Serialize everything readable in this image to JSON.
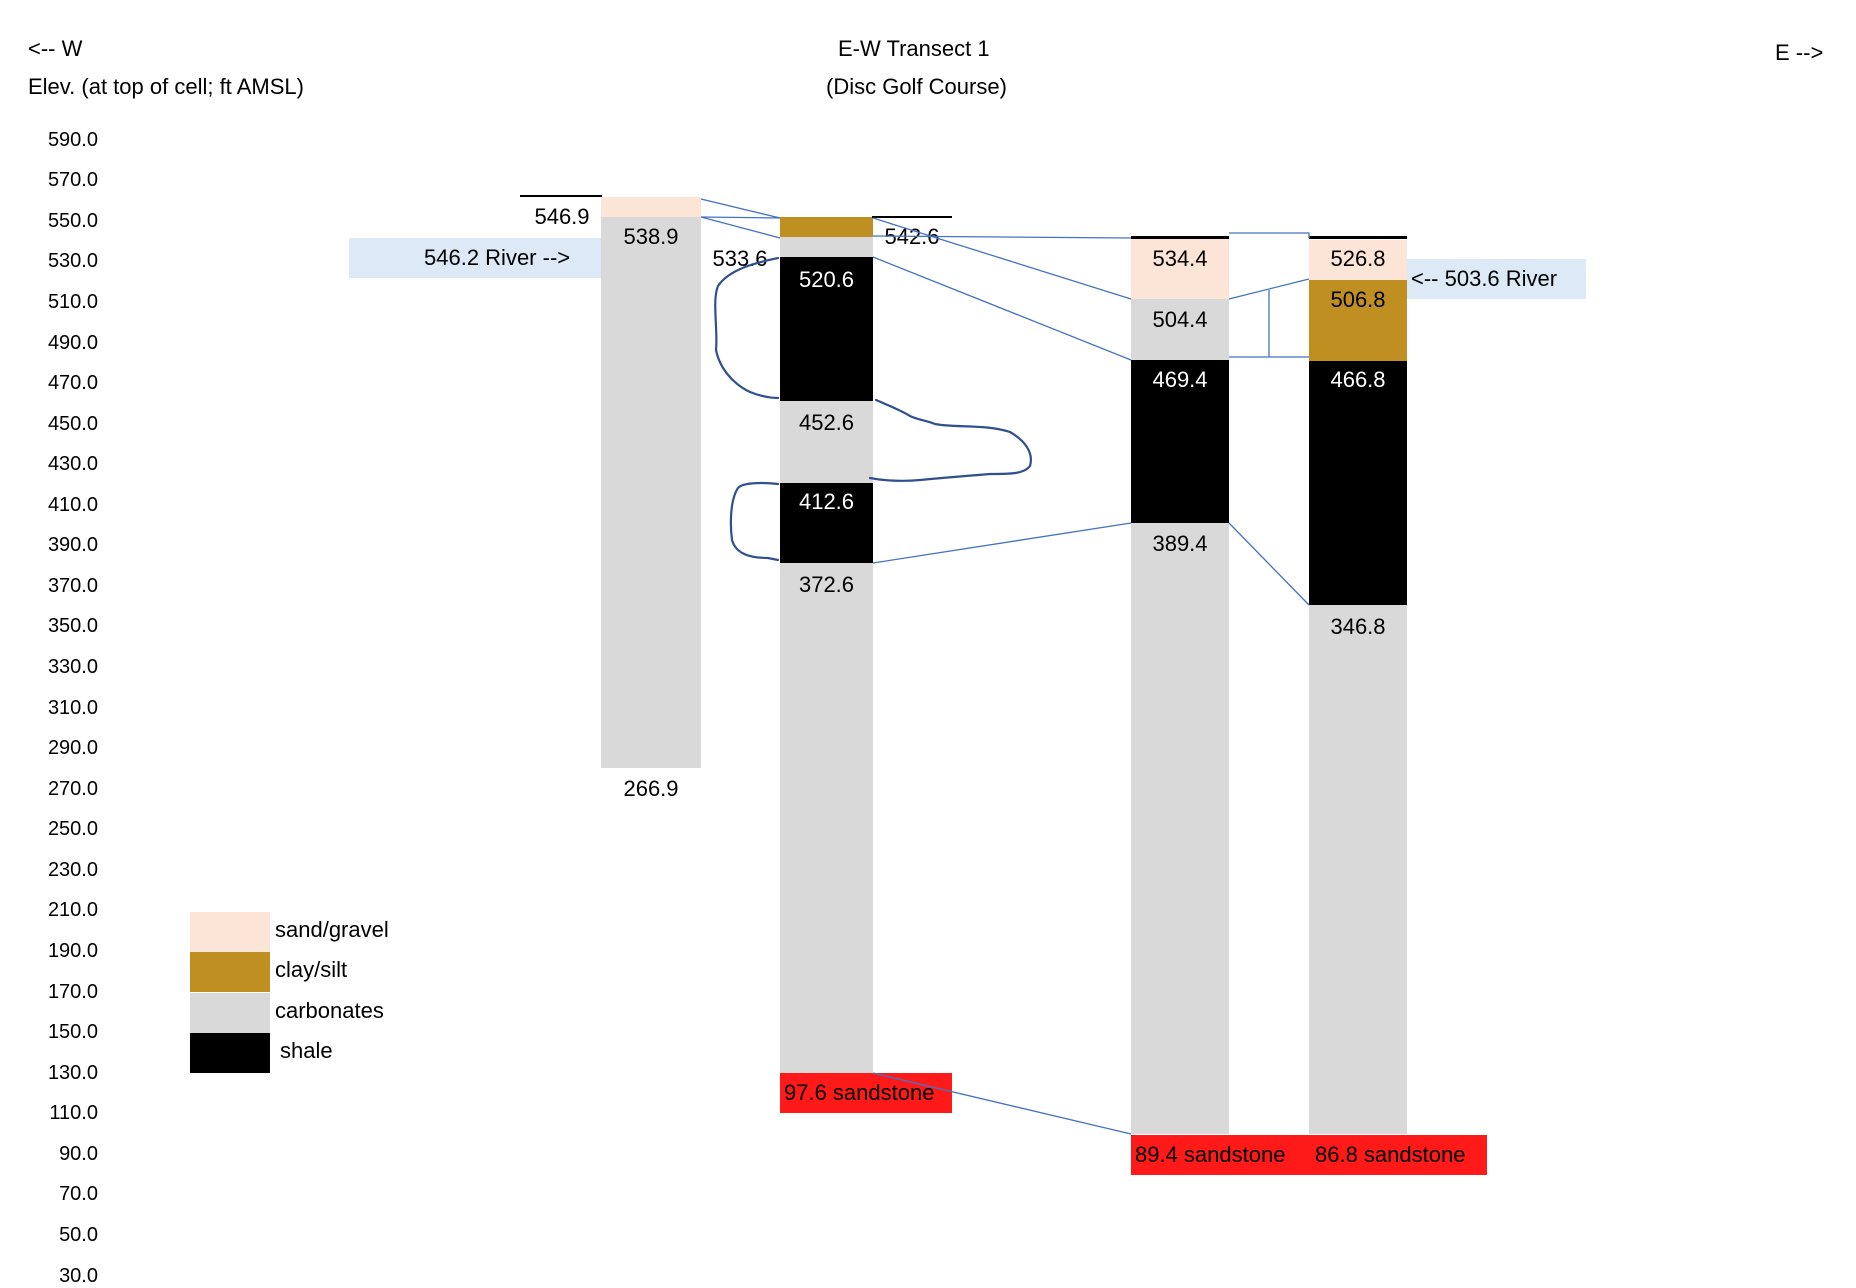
{
  "header": {
    "west_arrow": "<-- W",
    "east_arrow": "E -->",
    "axis_label": "Elev. (at top of cell; ft AMSL)",
    "title": "E-W Transect 1",
    "subtitle": "(Disc Golf Course)"
  },
  "y_ticks": [
    "590.0",
    "570.0",
    "550.0",
    "530.0",
    "510.0",
    "490.0",
    "470.0",
    "450.0",
    "430.0",
    "410.0",
    "390.0",
    "370.0",
    "350.0",
    "330.0",
    "310.0",
    "290.0",
    "270.0",
    "250.0",
    "230.0",
    "210.0",
    "190.0",
    "170.0",
    "150.0",
    "130.0",
    "110.0",
    "90.0",
    "70.0",
    "50.0",
    "30.0"
  ],
  "colors": {
    "sand_gravel": "#fce4d6",
    "clay_silt": "#bf8f21",
    "carbonates": "#d9d9d9",
    "shale": "#000000",
    "sandstone": "#ff1a1a",
    "river": "#dde9f6",
    "tie_line": "#4472c4",
    "hand_curve": "#2f4f8f"
  },
  "legend": [
    {
      "label": "sand/gravel",
      "color": "#fce4d6"
    },
    {
      "label": "clay/silt",
      "color": "#bf8f21"
    },
    {
      "label": "carbonates",
      "color": "#d9d9d9"
    },
    {
      "label": "shale",
      "color": "#000000"
    }
  ],
  "wells": [
    {
      "surface": "546.9",
      "layers": [
        {
          "type": "sand_gravel",
          "top": 546.9,
          "bottom": 538.9
        },
        {
          "type": "carbonates",
          "top": 538.9,
          "bottom": 266.9
        }
      ],
      "labels": [
        "538.9",
        "266.9"
      ],
      "river": "546.2 River -->"
    },
    {
      "surface": "542.6",
      "layers": [
        {
          "type": "clay_silt",
          "top": 542.6,
          "bottom": 533.6
        },
        {
          "type": "carbonates",
          "top": 533.6,
          "bottom": 520.6
        },
        {
          "type": "shale",
          "top": 520.6,
          "bottom": 452.6
        },
        {
          "type": "carbonates",
          "top": 452.6,
          "bottom": 412.6
        },
        {
          "type": "shale",
          "top": 412.6,
          "bottom": 372.6
        },
        {
          "type": "carbonates",
          "top": 372.6,
          "bottom": 97.6
        }
      ],
      "labels": [
        "533.6",
        "520.6",
        "452.6",
        "412.6",
        "372.6"
      ],
      "sandstone": "97.6 sandstone"
    },
    {
      "layers": [
        {
          "type": "sand_gravel",
          "top": 534.4,
          "bottom": 504.4
        },
        {
          "type": "carbonates",
          "top": 504.4,
          "bottom": 469.4
        },
        {
          "type": "shale",
          "top": 469.4,
          "bottom": 389.4
        },
        {
          "type": "carbonates",
          "top": 389.4,
          "bottom": 89.4
        }
      ],
      "labels": [
        "534.4",
        "504.4",
        "469.4",
        "389.4"
      ],
      "sandstone": "89.4 sandstone"
    },
    {
      "layers": [
        {
          "type": "sand_gravel",
          "top": 526.8,
          "bottom": 506.8
        },
        {
          "type": "clay_silt",
          "top": 506.8,
          "bottom": 466.8
        },
        {
          "type": "shale",
          "top": 466.8,
          "bottom": 346.8
        },
        {
          "type": "carbonates",
          "top": 346.8,
          "bottom": 86.8
        }
      ],
      "labels": [
        "526.8",
        "506.8",
        "466.8",
        "346.8"
      ],
      "sandstone": "86.8 sandstone",
      "river": "<-- 503.6 River"
    }
  ]
}
